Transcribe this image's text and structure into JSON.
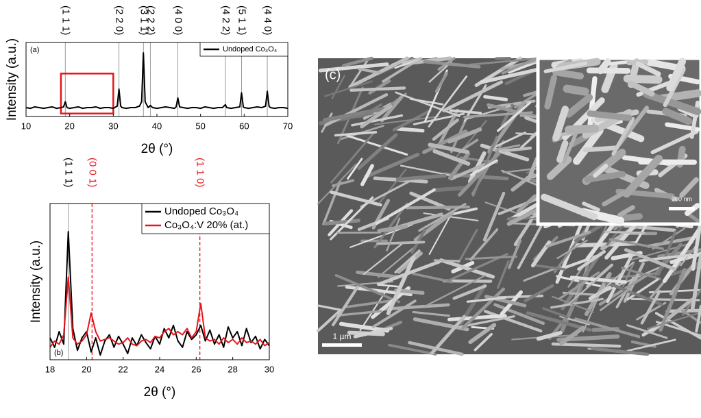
{
  "chart_data": [
    {
      "type": "line",
      "panel_label": "(a)",
      "x_label": "2θ (°)",
      "y_label": "Intensity (a.u.)",
      "xlim": [
        10,
        70
      ],
      "xticks": [
        10,
        20,
        30,
        40,
        50,
        60,
        70
      ],
      "ylim": [
        0,
        100
      ],
      "legend": "upper right",
      "x": [
        10,
        11,
        12,
        13,
        14,
        15,
        16,
        17,
        18,
        18.6,
        19,
        19.4,
        20,
        21,
        22,
        23,
        24,
        25,
        26,
        27,
        28,
        29,
        30,
        30.9,
        31.3,
        31.7,
        32,
        33,
        34,
        35,
        36,
        36.5,
        36.9,
        37.3,
        38,
        38.5,
        39,
        40,
        41,
        42,
        43,
        44,
        44.4,
        44.8,
        45.2,
        46,
        47,
        48,
        49,
        50,
        51,
        52,
        53,
        54,
        55,
        55.7,
        56,
        57,
        58,
        59,
        59.4,
        59.8,
        60,
        61,
        62,
        63,
        64,
        64.9,
        65.3,
        65.7,
        66,
        67,
        68,
        69,
        70
      ],
      "series": [
        {
          "name": "Undoped Co₃O₄",
          "color": "#000000",
          "values": [
            12,
            11,
            13,
            12,
            11,
            12,
            13,
            11,
            12,
            13,
            20,
            12,
            11,
            12,
            13,
            11,
            12,
            12,
            13,
            11,
            12,
            12,
            11,
            14,
            37,
            14,
            12,
            11,
            12,
            12,
            14,
            20,
            86,
            20,
            12,
            15,
            12,
            11,
            12,
            13,
            12,
            11,
            13,
            25,
            13,
            12,
            11,
            12,
            12,
            11,
            13,
            12,
            11,
            12,
            12,
            16,
            12,
            11,
            12,
            13,
            32,
            13,
            12,
            11,
            12,
            13,
            12,
            14,
            34,
            14,
            12,
            11,
            12,
            12,
            11
          ]
        }
      ],
      "reflections": [
        {
          "x": 19.0,
          "label": "(1 1 1)",
          "color": "#000000",
          "style": "solid"
        },
        {
          "x": 31.3,
          "label": "(2 2 0)",
          "color": "#000000",
          "style": "solid"
        },
        {
          "x": 36.9,
          "label": "(3 1 1)",
          "color": "#000000",
          "style": "solid"
        },
        {
          "x": 38.5,
          "label": "(2 2 2)",
          "color": "#000000",
          "style": "solid"
        },
        {
          "x": 44.8,
          "label": "(4 0 0)",
          "color": "#000000",
          "style": "solid"
        },
        {
          "x": 55.7,
          "label": "(4 2 2)",
          "color": "#000000",
          "style": "solid"
        },
        {
          "x": 59.4,
          "label": "(5 1 1)",
          "color": "#000000",
          "style": "solid"
        },
        {
          "x": 65.3,
          "label": "(4 4 0)",
          "color": "#000000",
          "style": "solid"
        }
      ],
      "highlight": {
        "xlim": [
          18,
          30
        ],
        "ylim": [
          4,
          58
        ],
        "color": "#e8141b"
      }
    },
    {
      "type": "line",
      "panel_label": "(b)",
      "x_label": "2θ (°)",
      "y_label": "Intensity (a.u.)",
      "xlim": [
        18,
        30
      ],
      "xticks": [
        18,
        20,
        22,
        24,
        26,
        28,
        30
      ],
      "ylim": [
        0,
        100
      ],
      "legend": "upper right",
      "x": [
        18,
        18.25,
        18.5,
        18.75,
        19,
        19.25,
        19.5,
        19.75,
        20,
        20.25,
        20.5,
        20.75,
        21,
        21.25,
        21.5,
        21.75,
        22,
        22.25,
        22.5,
        22.75,
        23,
        23.25,
        23.5,
        23.75,
        24,
        24.25,
        24.5,
        24.75,
        25,
        25.25,
        25.5,
        25.75,
        26,
        26.25,
        26.5,
        26.75,
        27,
        27.25,
        27.5,
        27.75,
        28,
        28.25,
        28.5,
        28.75,
        29,
        29.25,
        29.5,
        29.75,
        30
      ],
      "series": [
        {
          "name": "Undoped Co₃O₄",
          "color": "#000000",
          "values": [
            14,
            8,
            18,
            10,
            82,
            20,
            6,
            14,
            18,
            5,
            14,
            3,
            12,
            16,
            8,
            15,
            10,
            4,
            14,
            9,
            16,
            11,
            7,
            15,
            10,
            20,
            14,
            22,
            12,
            8,
            18,
            13,
            16,
            22,
            12,
            19,
            10,
            16,
            8,
            21,
            14,
            18,
            9,
            20,
            11,
            15,
            7,
            13,
            9
          ]
        },
        {
          "name": "Co₃O₄:V 20% (at.)",
          "color": "#e8141b",
          "values": [
            8,
            12,
            10,
            16,
            53,
            14,
            10,
            12,
            16,
            30,
            18,
            12,
            13,
            14,
            12,
            10,
            11,
            14,
            10,
            9,
            12,
            13,
            11,
            15,
            14,
            18,
            20,
            16,
            18,
            16,
            20,
            14,
            18,
            36,
            14,
            12,
            13,
            10,
            14,
            11,
            13,
            10,
            14,
            11,
            12,
            10,
            13,
            9,
            11
          ]
        }
      ],
      "reflections": [
        {
          "x": 19.0,
          "label": "(1 1 1)",
          "color": "#000000",
          "style": "solid"
        },
        {
          "x": 20.3,
          "label": "(0 0 1)",
          "color": "#e8141b",
          "style": "dashed"
        },
        {
          "x": 26.2,
          "label": "(1 1 0)",
          "color": "#e8141b",
          "style": "dashed"
        }
      ]
    }
  ],
  "image": {
    "panel_label": "(c)",
    "scale_bar": "1 µm",
    "inset_scale_bar": "200 nm"
  }
}
